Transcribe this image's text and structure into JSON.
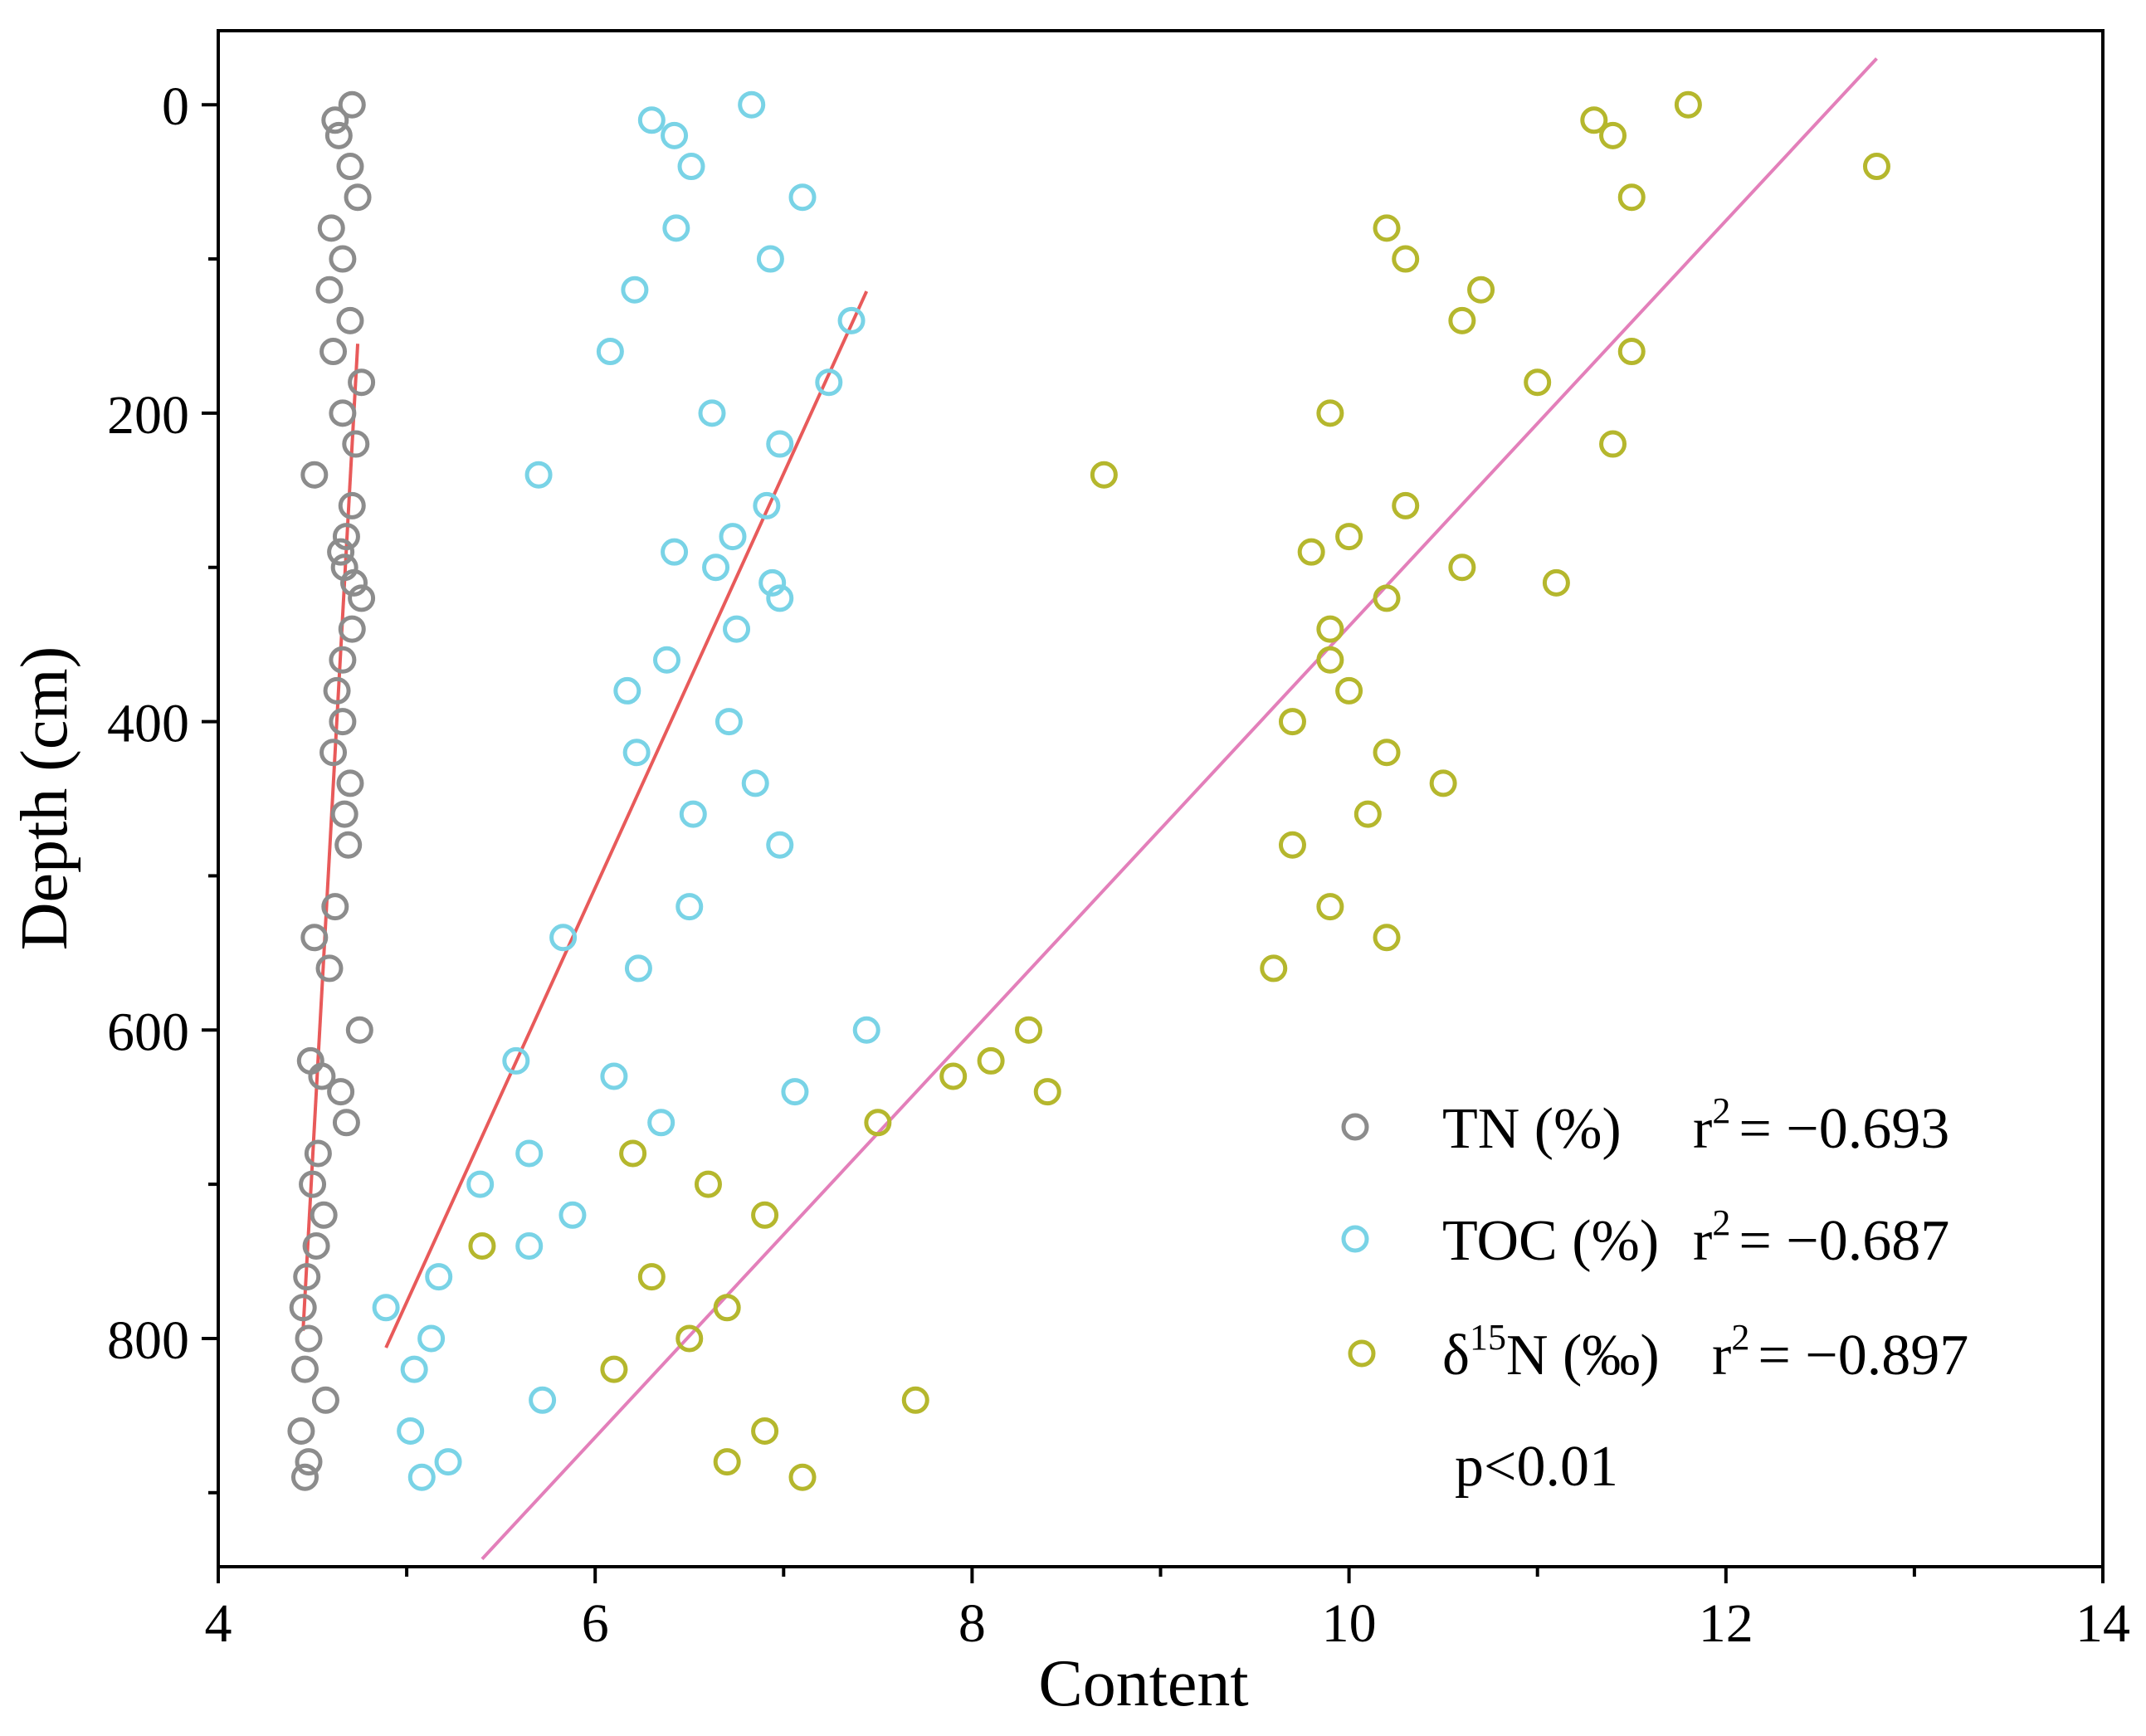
{
  "chart_data": {
    "type": "scatter",
    "title": "",
    "xlabel": "Content",
    "ylabel": "Depth (cm)",
    "xlim": [
      4,
      14
    ],
    "ylim": [
      948,
      -48
    ],
    "x_ticks": [
      4,
      6,
      8,
      10,
      12,
      14
    ],
    "x_tick_labels": [
      "4",
      "6",
      "8",
      "10",
      "12",
      "14"
    ],
    "y_ticks": [
      0,
      200,
      400,
      600,
      800
    ],
    "y_tick_labels": [
      "0",
      "200",
      "400",
      "600",
      "800"
    ],
    "grid": false,
    "legend_position": "bottom-right",
    "depths": [
      0,
      10,
      20,
      40,
      60,
      80,
      100,
      120,
      140,
      160,
      180,
      200,
      220,
      240,
      260,
      280,
      290,
      300,
      310,
      320,
      340,
      360,
      380,
      400,
      420,
      440,
      460,
      480,
      520,
      540,
      560,
      600,
      620,
      630,
      640,
      660,
      680,
      700,
      720,
      740,
      760,
      780,
      800,
      820,
      840,
      860,
      880,
      890
    ],
    "series": [
      {
        "name": "TN (%)",
        "legend_label": "TN (%)",
        "r2_text": "r",
        "r2_value": "= −0.693",
        "color": "#8c8c8c",
        "values": [
          4.71,
          4.62,
          4.64,
          4.7,
          4.74,
          4.6,
          4.66,
          4.59,
          4.7,
          4.61,
          4.76,
          4.66,
          4.73,
          4.51,
          4.71,
          4.68,
          4.65,
          4.67,
          4.72,
          4.76,
          4.71,
          4.66,
          4.63,
          4.66,
          4.61,
          4.7,
          4.67,
          4.69,
          4.62,
          4.51,
          4.59,
          4.75,
          4.49,
          4.55,
          4.65,
          4.68,
          4.53,
          4.5,
          4.56,
          4.52,
          4.47,
          4.45,
          4.48,
          4.46,
          4.57,
          4.44,
          4.48,
          4.46
        ],
        "fit_line": {
          "x1": 4.74,
          "y1": 155,
          "x2": 4.45,
          "y2": 795,
          "color": "#e85a5a"
        }
      },
      {
        "name": "TOC (%)",
        "legend_label": "TOC (%)",
        "r2_text": "r",
        "r2_value": "= −0.687",
        "color": "#79d3e6",
        "values": [
          6.83,
          6.3,
          6.42,
          6.51,
          7.1,
          6.43,
          6.93,
          6.21,
          7.36,
          6.08,
          7.24,
          6.62,
          6.98,
          5.7,
          6.91,
          6.73,
          6.42,
          6.64,
          6.94,
          6.98,
          6.75,
          6.38,
          6.17,
          6.71,
          6.22,
          6.85,
          6.52,
          6.98,
          6.5,
          5.83,
          6.23,
          7.44,
          5.58,
          6.1,
          7.06,
          6.35,
          5.65,
          5.39,
          5.88,
          5.65,
          5.17,
          4.89,
          5.13,
          5.04,
          5.72,
          5.02,
          5.22,
          5.08
        ],
        "fit_line": {
          "x1": 7.44,
          "y1": 121,
          "x2": 4.89,
          "y2": 806,
          "color": "#e85a5a"
        }
      },
      {
        "name": "δ15N (‰)",
        "legend_label": "δ",
        "legend_sup": "15",
        "legend_label_rest": "N (‰)",
        "r2_text": "r",
        "r2_value": "= −0.897",
        "color": "#b5b72d",
        "values": [
          11.8,
          11.3,
          11.4,
          12.8,
          11.5,
          10.2,
          10.3,
          10.7,
          10.6,
          11.5,
          11.0,
          9.9,
          11.4,
          8.7,
          10.3,
          10.0,
          9.8,
          10.6,
          11.1,
          10.2,
          9.9,
          9.9,
          10.0,
          9.7,
          10.2,
          10.5,
          10.1,
          9.7,
          9.9,
          10.2,
          9.6,
          8.3,
          8.1,
          7.9,
          8.4,
          7.5,
          6.2,
          6.6,
          6.9,
          5.4,
          6.3,
          6.7,
          6.5,
          6.1,
          7.7,
          6.9,
          6.7,
          7.1
        ],
        "fit_line": {
          "x1": 12.8,
          "y1": -30,
          "x2": 5.4,
          "y2": 943,
          "color": "#e37fba"
        }
      }
    ],
    "annotation": "p<0.01",
    "r2_superscript": "2"
  }
}
